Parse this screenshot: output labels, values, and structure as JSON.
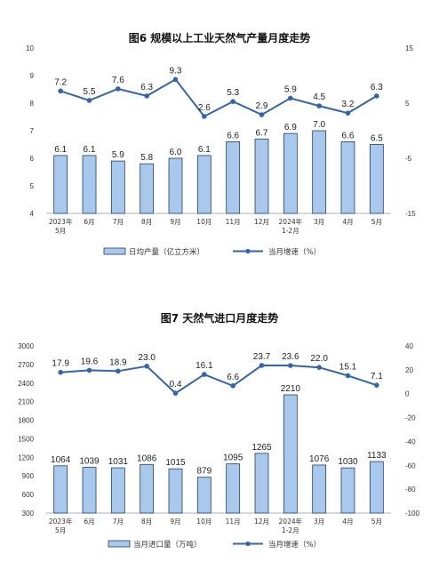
{
  "charts": [
    {
      "title": "图6  规模以上工业天然气产量月度走势",
      "categories": [
        [
          "2023年",
          "5月"
        ],
        [
          "6月"
        ],
        [
          "7月"
        ],
        [
          "8月"
        ],
        [
          "9月"
        ],
        [
          "10月"
        ],
        [
          "11月"
        ],
        [
          "12月"
        ],
        [
          "2024年",
          "1-2月"
        ],
        [
          "3月"
        ],
        [
          "4月"
        ],
        [
          "5月"
        ]
      ],
      "legend_bar": "日均产量（亿立方米）",
      "legend_line": "当月增速（%）",
      "left_ticks": [
        "4",
        "5",
        "6",
        "7",
        "8",
        "9",
        "10"
      ],
      "right_ticks": [
        "-15",
        "-5",
        "5",
        "15"
      ]
    },
    {
      "title": "图7  天然气进口月度走势",
      "categories": [
        [
          "2023年",
          "5月"
        ],
        [
          "6月"
        ],
        [
          "7月"
        ],
        [
          "8月"
        ],
        [
          "9月"
        ],
        [
          "10月"
        ],
        [
          "11月"
        ],
        [
          "12月"
        ],
        [
          "2024年",
          "1-2月"
        ],
        [
          "3月"
        ],
        [
          "4月"
        ],
        [
          "5月"
        ]
      ],
      "legend_bar": "当月进口量（万吨）",
      "legend_line": "当月增速（%）",
      "left_ticks": [
        "300",
        "600",
        "900",
        "1200",
        "1500",
        "1800",
        "2100",
        "2400",
        "2700",
        "3000"
      ],
      "right_ticks": [
        "-100",
        "-80",
        "-60",
        "-40",
        "-20",
        "0",
        "20",
        "40"
      ]
    }
  ],
  "chart_data": [
    {
      "type": "bar",
      "title": "图6  规模以上工业天然气产量月度走势",
      "categories": [
        "2023年5月",
        "6月",
        "7月",
        "8月",
        "9月",
        "10月",
        "11月",
        "12月",
        "2024年1-2月",
        "3月",
        "4月",
        "5月"
      ],
      "series": [
        {
          "name": "日均产量（亿立方米）",
          "type": "bar",
          "axis": "left",
          "values": [
            6.1,
            6.1,
            5.9,
            5.8,
            6.0,
            6.1,
            6.6,
            6.7,
            6.9,
            7.0,
            6.6,
            6.5
          ]
        },
        {
          "name": "当月增速（%）",
          "type": "line",
          "axis": "right",
          "values": [
            7.2,
            5.5,
            7.6,
            6.3,
            9.3,
            2.6,
            5.3,
            2.9,
            5.9,
            4.5,
            3.2,
            6.3
          ]
        }
      ],
      "ylim_left": [
        4,
        10
      ],
      "ylim_right": [
        -15,
        15
      ]
    },
    {
      "type": "bar",
      "title": "图7  天然气进口月度走势",
      "categories": [
        "2023年5月",
        "6月",
        "7月",
        "8月",
        "9月",
        "10月",
        "11月",
        "12月",
        "2024年1-2月",
        "3月",
        "4月",
        "5月"
      ],
      "series": [
        {
          "name": "当月进口量（万吨）",
          "type": "bar",
          "axis": "left",
          "values": [
            1064,
            1039,
            1031,
            1086,
            1015,
            879,
            1095,
            1265,
            2210,
            1076,
            1030,
            1133
          ]
        },
        {
          "name": "当月增速（%）",
          "type": "line",
          "axis": "right",
          "values": [
            17.9,
            19.6,
            18.9,
            23.0,
            0.4,
            16.1,
            6.6,
            23.7,
            23.6,
            22.0,
            15.1,
            7.1
          ]
        }
      ],
      "ylim_left": [
        300,
        3000
      ],
      "ylim_right": [
        -100,
        40
      ]
    }
  ]
}
